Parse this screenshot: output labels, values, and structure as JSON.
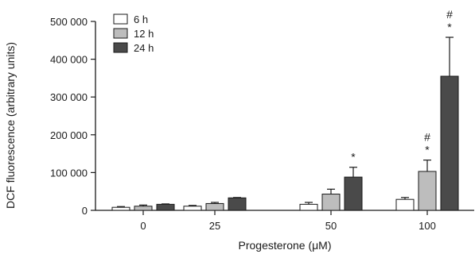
{
  "chart_data": {
    "type": "bar",
    "xlabel": "Progesterone (μM)",
    "ylabel": "DCF fluorescence (arbitrary units)",
    "ylim": [
      0,
      500000
    ],
    "yticks": [
      0,
      100000,
      200000,
      300000,
      400000,
      500000
    ],
    "ytick_labels": [
      "0",
      "100 000",
      "200 000",
      "300 000",
      "400 000",
      "500 000"
    ],
    "categories": [
      "0",
      "25",
      "50",
      "100"
    ],
    "legend_position": "top-left",
    "grid": false,
    "series": [
      {
        "name": "6 h",
        "color": "#ffffff",
        "values": [
          8000,
          11000,
          16000,
          29000
        ],
        "errors": [
          2000,
          2000,
          5000,
          5000
        ]
      },
      {
        "name": "12 h",
        "color": "#bdbdbd",
        "values": [
          11000,
          18000,
          43000,
          103000
        ],
        "errors": [
          3000,
          3000,
          13000,
          30000
        ]
      },
      {
        "name": "24 h",
        "color": "#4a4a4a",
        "values": [
          16000,
          33000,
          88000,
          355000
        ],
        "errors": [
          1000,
          1000,
          26000,
          103000
        ]
      }
    ],
    "annotations": [
      {
        "category": "50",
        "series": "24 h",
        "text": "*"
      },
      {
        "category": "100",
        "series": "12 h",
        "text": "#"
      },
      {
        "category": "100",
        "series": "12 h",
        "text": "*"
      },
      {
        "category": "100",
        "series": "24 h",
        "text": "#"
      },
      {
        "category": "100",
        "series": "24 h",
        "text": "*"
      }
    ]
  }
}
